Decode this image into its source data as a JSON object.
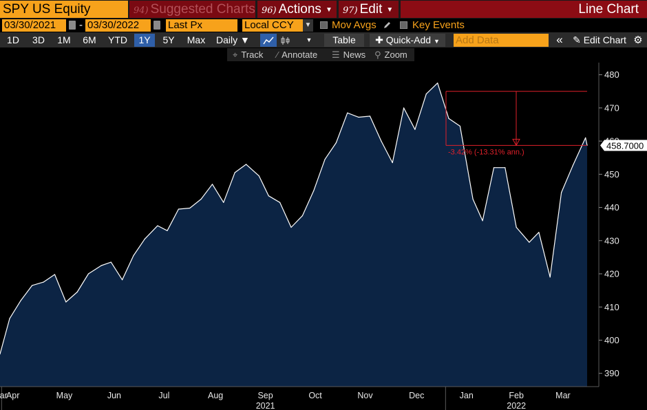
{
  "header": {
    "ticker": "SPY US Equity",
    "suggested": {
      "num": "94)",
      "label": "Suggested Charts"
    },
    "actions": {
      "num": "96)",
      "label": "Actions"
    },
    "edit": {
      "num": "97)",
      "label": "Edit"
    },
    "view_title": "Line Chart"
  },
  "params": {
    "start_date": "03/30/2021",
    "end_date": "03/30/2022",
    "date_sep": "-",
    "field": "Last Px",
    "currency": "Local CCY",
    "mov_avgs": "Mov Avgs",
    "key_events": "Key Events"
  },
  "toolbar": {
    "periods": [
      "1D",
      "3D",
      "1M",
      "6M",
      "YTD",
      "1Y",
      "5Y",
      "Max"
    ],
    "selected_period": "1Y",
    "frequency": "Daily",
    "table": "Table",
    "quick_add": "Quick-Add",
    "add_data_placeholder": "Add Data",
    "collapse": "«",
    "edit_chart": "Edit Chart"
  },
  "tools": {
    "track": "Track",
    "annotate": "Annotate",
    "news": "News",
    "zoom": "Zoom"
  },
  "colors": {
    "accent_orange": "#f7a21b",
    "header_red": "#8c0c14",
    "area_fill": "#0c2444",
    "line": "#ffffff",
    "annotation": "#e0202a"
  },
  "chart_data": {
    "type": "area",
    "title": "SPY US Equity",
    "series": [
      {
        "name": "SPY Last Px",
        "x": [
          "2021-03-30",
          "2021-04-05",
          "2021-04-12",
          "2021-04-19",
          "2021-04-26",
          "2021-05-03",
          "2021-05-10",
          "2021-05-17",
          "2021-05-24",
          "2021-06-01",
          "2021-06-07",
          "2021-06-14",
          "2021-06-21",
          "2021-06-28",
          "2021-07-06",
          "2021-07-12",
          "2021-07-19",
          "2021-07-26",
          "2021-08-02",
          "2021-08-09",
          "2021-08-16",
          "2021-08-23",
          "2021-08-30",
          "2021-09-07",
          "2021-09-13",
          "2021-09-20",
          "2021-09-27",
          "2021-10-04",
          "2021-10-11",
          "2021-10-18",
          "2021-10-25",
          "2021-11-01",
          "2021-11-08",
          "2021-11-15",
          "2021-11-22",
          "2021-11-29",
          "2021-12-06",
          "2021-12-13",
          "2021-12-20",
          "2021-12-27",
          "2022-01-03",
          "2022-01-10",
          "2022-01-18",
          "2022-01-24",
          "2022-01-31",
          "2022-02-07",
          "2022-02-14",
          "2022-02-22",
          "2022-02-28",
          "2022-03-07",
          "2022-03-14",
          "2022-03-21",
          "2022-03-29",
          "2022-03-30"
        ],
        "y": [
          395.8,
          406.5,
          412.0,
          416.5,
          417.5,
          419.8,
          411.5,
          414.5,
          420.0,
          422.5,
          423.5,
          418.2,
          425.5,
          430.5,
          434.5,
          433.0,
          439.5,
          439.8,
          442.5,
          447.0,
          441.5,
          450.5,
          453.0,
          449.5,
          443.5,
          441.5,
          434.0,
          437.5,
          445.0,
          454.5,
          459.5,
          468.5,
          467.2,
          467.5,
          460.0,
          453.5,
          470.0,
          463.5,
          474.2,
          477.5,
          466.8,
          464.5,
          442.5,
          436.0,
          452.0,
          452.0,
          434.0,
          429.5,
          432.5,
          419.0,
          444.5,
          452.5,
          461.0,
          458.7
        ]
      }
    ],
    "last_price_label": "458.7000",
    "annotation": {
      "label": "-3.42% (-13.31% ann.)",
      "from_price": 475.0,
      "to_price": 458.7
    },
    "ylim": [
      386,
      482
    ],
    "yticks": [
      390,
      400,
      410,
      420,
      430,
      440,
      450,
      460,
      470,
      480
    ],
    "month_ticks": [
      {
        "label": "Mar",
        "date": "2021-03-30"
      },
      {
        "label": "Apr",
        "date": "2021-04-07"
      },
      {
        "label": "May",
        "date": "2021-05-09"
      },
      {
        "label": "Jun",
        "date": "2021-06-09"
      },
      {
        "label": "Jul",
        "date": "2021-07-10"
      },
      {
        "label": "Aug",
        "date": "2021-08-11"
      },
      {
        "label": "Sep",
        "date": "2021-09-11"
      },
      {
        "label": "Oct",
        "date": "2021-10-12"
      },
      {
        "label": "Nov",
        "date": "2021-11-12"
      },
      {
        "label": "Dec",
        "date": "2021-12-14"
      },
      {
        "label": "Jan",
        "date": "2022-01-14"
      },
      {
        "label": "Feb",
        "date": "2022-02-14"
      },
      {
        "label": "Mar",
        "date": "2022-03-15"
      }
    ],
    "year_ticks": [
      {
        "label": "2021",
        "date": "2021-09-11"
      },
      {
        "label": "2022",
        "date": "2022-02-14"
      }
    ],
    "year_dividers": [
      "2021-03-31",
      "2022-01-01"
    ],
    "grid": false,
    "xlabel": "",
    "ylabel": ""
  }
}
